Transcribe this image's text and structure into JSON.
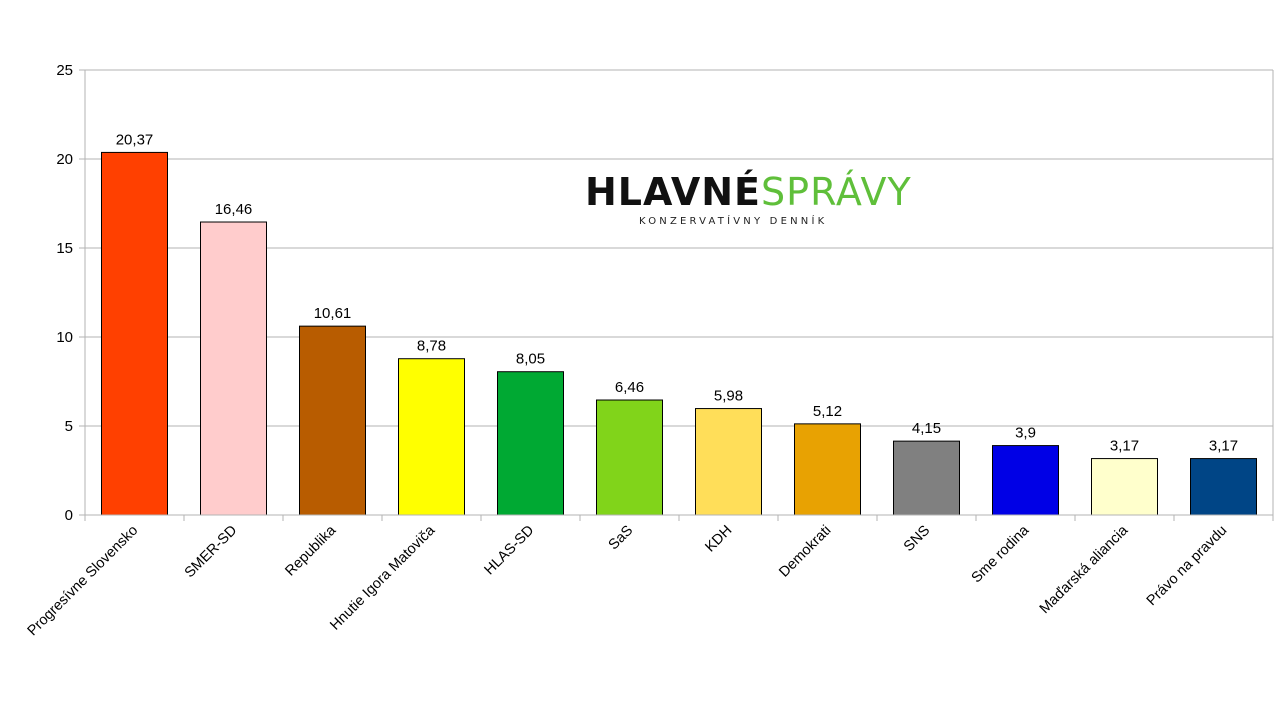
{
  "logo": {
    "word1": "HLAVNÉ",
    "word2": "SPRÁVY",
    "tagline": "KONZERVATÍVNY DENNÍK"
  },
  "chart_data": {
    "type": "bar",
    "title": "",
    "xlabel": "",
    "ylabel": "",
    "ylim": [
      0,
      25
    ],
    "yticks": [
      "0",
      "5",
      "10",
      "15",
      "20",
      "25"
    ],
    "grid": true,
    "legend": "none",
    "categories": [
      "Progresívne Slovensko",
      "SMER-SD",
      "Republika",
      "Hnutie Igora Matoviča",
      "HLAS-SD",
      "SaS",
      "KDH",
      "Demokrati",
      "SNS",
      "Sme rodina",
      "Maďarská aliancia",
      "Právo na pravdu"
    ],
    "values": [
      20.37,
      16.46,
      10.61,
      8.78,
      8.05,
      6.46,
      5.98,
      5.12,
      4.15,
      3.9,
      3.17,
      3.17
    ],
    "value_labels": [
      "20,37",
      "16,46",
      "10,61",
      "8,78",
      "8,05",
      "6,46",
      "5,98",
      "5,12",
      "4,15",
      "3,9",
      "3,17",
      "3,17"
    ],
    "colors": [
      "#ff4000",
      "#ffcccc",
      "#b85c00",
      "#ffff00",
      "#00a933",
      "#81d41a",
      "#ffde59",
      "#e8a202",
      "#808080",
      "#0000e6",
      "#ffffcc",
      "#004586"
    ]
  }
}
